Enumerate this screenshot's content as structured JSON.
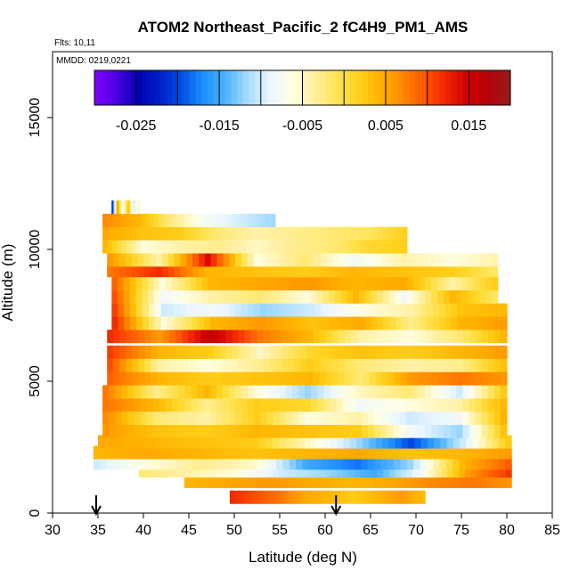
{
  "chart_data": {
    "type": "heatmap",
    "title": "ATOM2 Northeast_Pacific_2 fC4H9_PM1_AMS",
    "flights_label": "Flts: 10,11",
    "mmdd_label": "MMDD: 0219,0221",
    "xlabel": "Latitude (deg N)",
    "ylabel": "Altitude (m)",
    "xlim": [
      30,
      85
    ],
    "ylim": [
      0,
      17500
    ],
    "x_ticks": [
      "30",
      "35",
      "40",
      "45",
      "50",
      "55",
      "60",
      "65",
      "70",
      "75",
      "80",
      "85"
    ],
    "y_ticks": [
      "0",
      "5000",
      "10000",
      "15000"
    ],
    "colorbar": {
      "min": -0.03,
      "max": 0.02,
      "tick_labels": [
        "-0.025",
        "-0.015",
        "-0.005",
        "0.005",
        "0.015"
      ],
      "tick_values": [
        -0.025,
        -0.015,
        -0.005,
        0.005,
        0.015
      ],
      "colors": [
        "#8000ff",
        "#4b00e0",
        "#0000b3",
        "#0020c8",
        "#0050e6",
        "#1e90ff",
        "#4db3ff",
        "#a6dcff",
        "#eaf6ff",
        "#ffffe6",
        "#fff0a0",
        "#ffe55c",
        "#ffd21e",
        "#ffb400",
        "#ff8c00",
        "#ff5a00",
        "#f02800",
        "#d00000",
        "#b4000a",
        "#961e1e"
      ]
    },
    "arrows_at_latitude": [
      34.8,
      61.2
    ],
    "layers": [
      {
        "alt": 600,
        "lat_start": 49.5,
        "lat_end": 71,
        "values": [
          0.012,
          0.01,
          0.008,
          0.005,
          0.004,
          0.002,
          0.004,
          0.006,
          0.003
        ]
      },
      {
        "alt": 1200,
        "lat_start": 44.5,
        "lat_end": 80.5,
        "values": [
          0.004,
          0.005,
          0.006,
          0.005,
          0.004,
          0.005,
          0.007,
          0.008,
          0.006
        ]
      },
      {
        "alt": 1600,
        "lat_start": 39.5,
        "lat_end": 80.5,
        "values": [
          -0.002,
          -0.004,
          -0.006,
          -0.01,
          -0.012,
          -0.015,
          -0.008,
          0.006,
          0.012
        ]
      },
      {
        "alt": 1900,
        "lat_start": 34.5,
        "lat_end": 80.5,
        "values": [
          -0.01,
          -0.006,
          -0.003,
          -0.005,
          -0.015,
          -0.018,
          -0.012,
          0.004,
          0.01
        ]
      },
      {
        "alt": 2300,
        "lat_start": 34.5,
        "lat_end": 80.5,
        "values": [
          0.004,
          0.005,
          0.004,
          0.003,
          0.004,
          0.005,
          0.003,
          0.004,
          0.006
        ]
      },
      {
        "alt": 2700,
        "lat_start": 35,
        "lat_end": 80.5,
        "values": [
          0.005,
          0.004,
          0.003,
          0.002,
          -0.005,
          -0.012,
          -0.02,
          -0.01,
          0.004
        ]
      },
      {
        "alt": 3100,
        "lat_start": 35.5,
        "lat_end": 80,
        "values": [
          0.006,
          0.003,
          0.002,
          0.004,
          0.003,
          0.002,
          -0.008,
          -0.012,
          0.005
        ]
      },
      {
        "alt": 3600,
        "lat_start": 35.5,
        "lat_end": 80,
        "values": [
          0.007,
          -0.002,
          -0.004,
          0.002,
          -0.006,
          -0.004,
          -0.01,
          -0.008,
          0.006
        ]
      },
      {
        "alt": 4100,
        "lat_start": 35.5,
        "lat_end": 80,
        "values": [
          0.008,
          0.004,
          -0.003,
          0.002,
          0.001,
          -0.008,
          -0.006,
          -0.004,
          0.005
        ]
      },
      {
        "alt": 4600,
        "lat_start": 35.5,
        "lat_end": 80,
        "values": [
          0.008,
          -0.003,
          0.004,
          -0.006,
          -0.012,
          -0.005,
          -0.002,
          -0.01,
          0.004
        ]
      },
      {
        "alt": 5100,
        "lat_start": 36,
        "lat_end": 80,
        "values": [
          0.009,
          0.004,
          0.002,
          0.003,
          0.004,
          -0.002,
          0.006,
          0.008,
          0.006
        ]
      },
      {
        "alt": 5600,
        "lat_start": 36,
        "lat_end": 80,
        "values": [
          0.01,
          -0.004,
          -0.006,
          -0.003,
          0.002,
          -0.002,
          -0.004,
          -0.003,
          0.004
        ]
      },
      {
        "alt": 6100,
        "lat_start": 36,
        "lat_end": 80,
        "values": [
          0.011,
          0.004,
          0.002,
          -0.005,
          0.001,
          0.003,
          0.002,
          0.004,
          0.006
        ]
      },
      {
        "alt": 6700,
        "lat_start": 36,
        "lat_end": 80,
        "values": [
          0.012,
          0.006,
          0.016,
          0.008,
          0.004,
          -0.004,
          -0.006,
          -0.002,
          0.005
        ]
      },
      {
        "alt": 7200,
        "lat_start": 36.5,
        "lat_end": 80,
        "values": [
          0.012,
          -0.006,
          0.004,
          0.006,
          0.003,
          0.005,
          -0.003,
          0.004,
          0.006
        ]
      },
      {
        "alt": 7700,
        "lat_start": 36.5,
        "lat_end": 80,
        "values": [
          0.011,
          -0.01,
          -0.008,
          -0.012,
          -0.01,
          -0.006,
          -0.004,
          0.003,
          0.004
        ]
      },
      {
        "alt": 8200,
        "lat_start": 36.5,
        "lat_end": 79,
        "values": [
          0.01,
          -0.008,
          -0.004,
          -0.002,
          -0.006,
          0.004,
          -0.008,
          0.004,
          -0.002
        ]
      },
      {
        "alt": 8700,
        "lat_start": 36.5,
        "lat_end": 79,
        "values": [
          0.009,
          -0.006,
          0.004,
          0.005,
          0.006,
          0.004,
          0.005,
          -0.004,
          0.003
        ]
      },
      {
        "alt": 9200,
        "lat_start": 36,
        "lat_end": 79,
        "values": [
          0.008,
          0.012,
          0.004,
          0.003,
          0.002,
          0.004,
          0.003,
          0.002,
          -0.002
        ]
      },
      {
        "alt": 9600,
        "lat_start": 36,
        "lat_end": 79,
        "values": [
          0.006,
          -0.004,
          0.014,
          -0.006,
          -0.002,
          -0.008,
          -0.004,
          -0.006,
          -0.004
        ]
      },
      {
        "alt": 10100,
        "lat_start": 35.5,
        "lat_end": 69,
        "values": [
          0.004,
          -0.006,
          -0.004,
          -0.003,
          -0.005,
          -0.003,
          -0.002,
          0.001,
          0.002
        ]
      },
      {
        "alt": 10600,
        "lat_start": 35.5,
        "lat_end": 69,
        "values": [
          0.005,
          0.003,
          0.002,
          -0.002,
          -0.004,
          -0.003,
          -0.002,
          -0.001,
          0.002
        ]
      },
      {
        "alt": 11100,
        "lat_start": 35.5,
        "lat_end": 54.5,
        "values": [
          0.007,
          0.004,
          -0.003,
          -0.008,
          -0.01,
          -0.012
        ]
      },
      {
        "alt": 11600,
        "lat_start": 36.5,
        "lat_end": 39.5,
        "values": [
          -0.025,
          0.006,
          -0.008,
          0.003,
          -0.01,
          -0.004
        ]
      }
    ]
  }
}
